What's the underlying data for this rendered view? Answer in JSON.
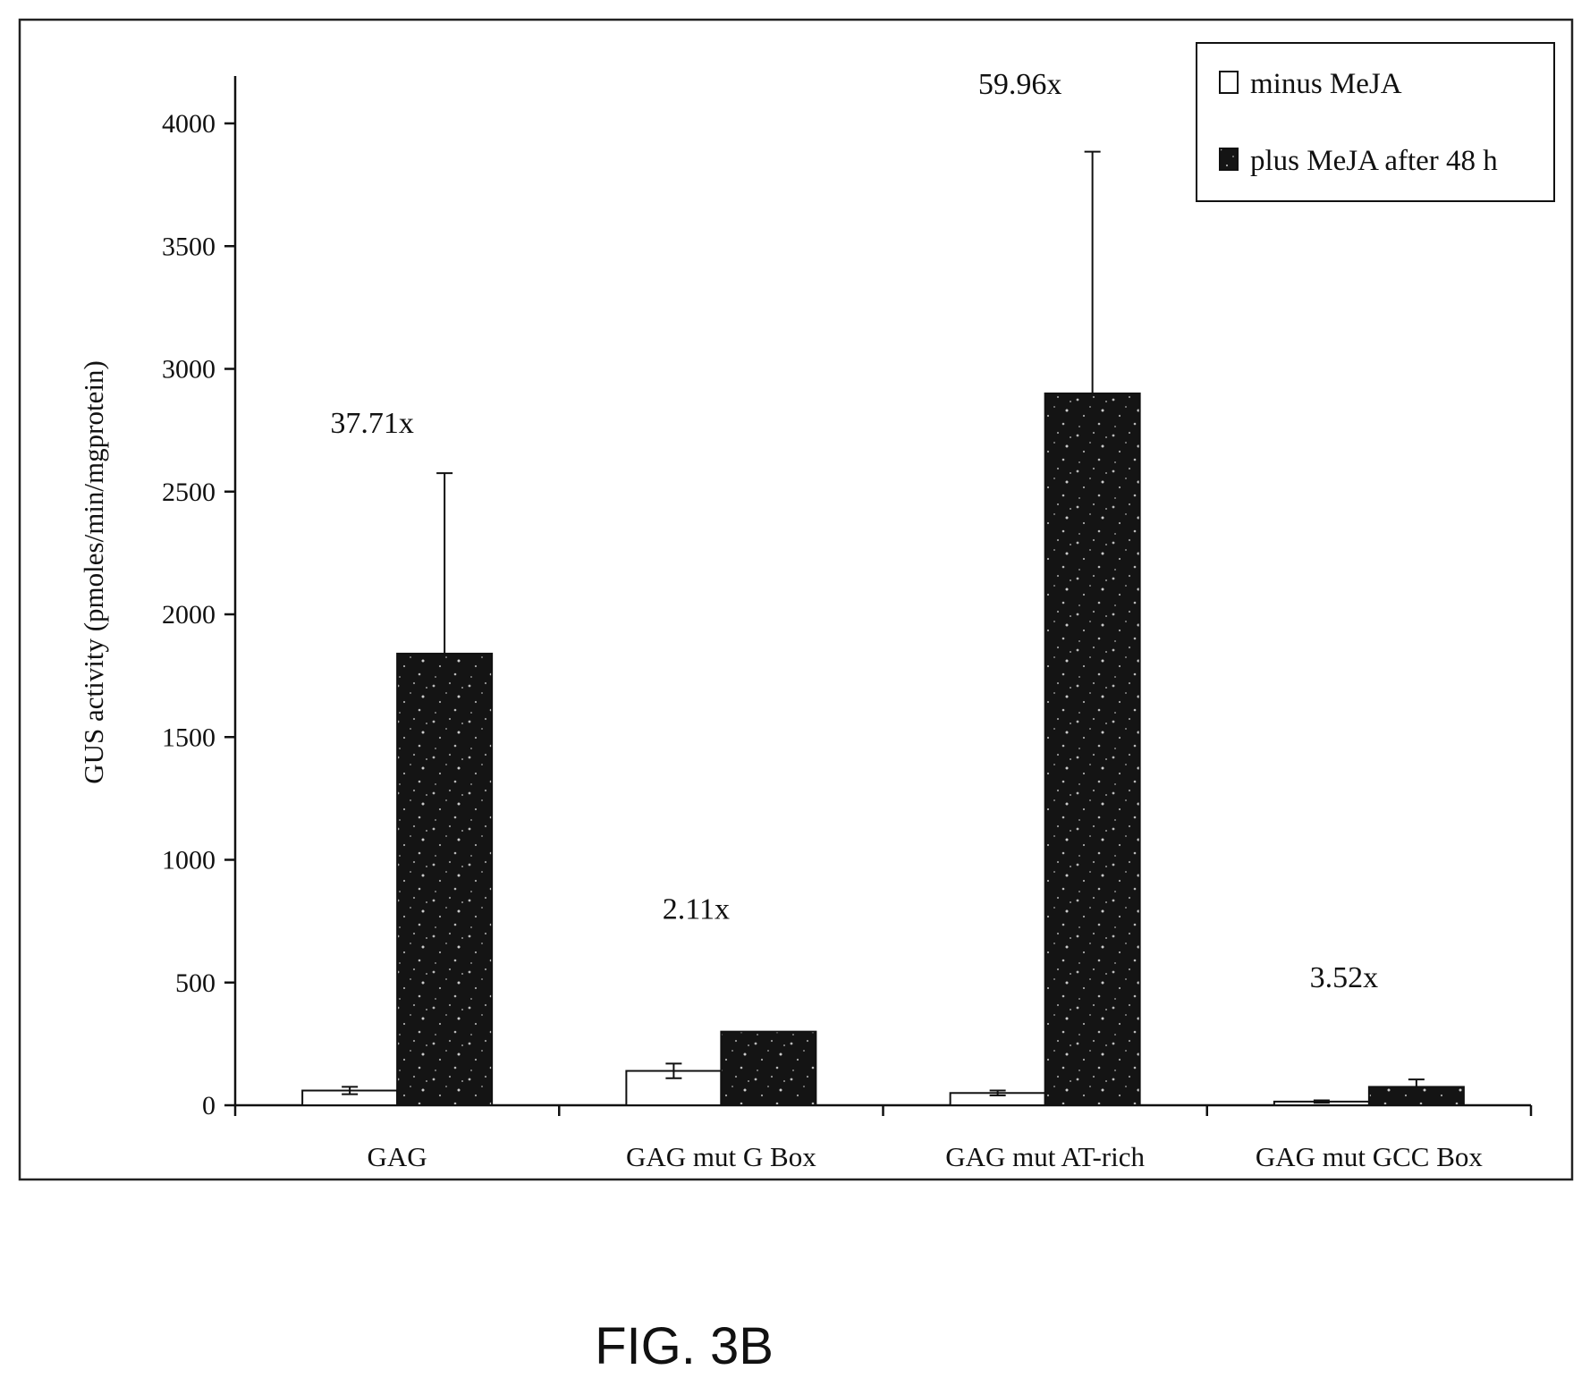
{
  "figure_caption": "FIG. 3B",
  "chart_data": {
    "type": "bar",
    "categories": [
      "GAG",
      "GAG mut G Box",
      "GAG mut AT-rich",
      "GAG mut GCC Box"
    ],
    "ylabel": "GUS activity (pmoles/min/mgprotein)",
    "xlabel": "",
    "ylim": [
      0,
      4000
    ],
    "yticks": [
      0,
      500,
      1000,
      1500,
      2000,
      2500,
      3000,
      3500,
      4000
    ],
    "grid": false,
    "legend_position": "top-right",
    "series": [
      {
        "name": "minus MeJA",
        "color": "#ffffff",
        "values": [
          60,
          140,
          50,
          15
        ],
        "errors": [
          15,
          30,
          10,
          5
        ]
      },
      {
        "name": "plus MeJA after 48 h",
        "color": "#1a1a1a",
        "values": [
          1840,
          300,
          2900,
          75
        ],
        "errors": [
          735,
          0,
          985,
          30
        ]
      }
    ],
    "annotations": [
      "37.71x",
      "2.11x",
      "59.96x",
      "3.52x"
    ],
    "annotation_values": [
      2740,
      760,
      4120,
      480
    ]
  }
}
